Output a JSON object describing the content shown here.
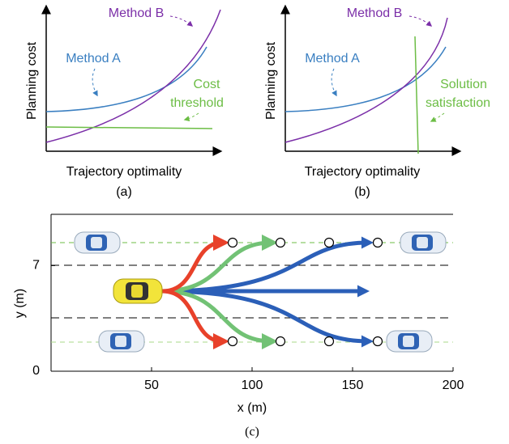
{
  "panel_a": {
    "ylabel": "Planning cost",
    "xlabel": "Trajectory optimality",
    "caption": "(a)",
    "method_b": "Method B",
    "method_a": "Method A",
    "note_1": "Cost",
    "note_2": "threshold"
  },
  "panel_b": {
    "ylabel": "Planning cost",
    "xlabel": "Trajectory optimality",
    "caption": "(b)",
    "method_b": "Method B",
    "method_a": "Method A",
    "note_1": "Solution",
    "note_2": "satisfaction"
  },
  "panel_c": {
    "ylabel": "y (m)",
    "xlabel": "x (m)",
    "caption": "(c)",
    "xlim": [
      0,
      200
    ],
    "ylim": [
      0,
      10.4
    ],
    "xticks": [
      50,
      100,
      150,
      200
    ],
    "yticks": [
      0,
      7
    ]
  }
}
